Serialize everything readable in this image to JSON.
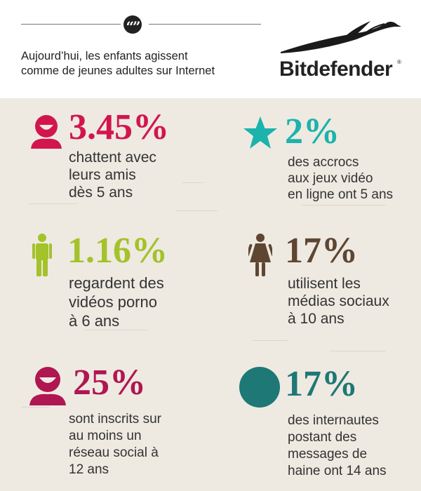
{
  "header": {
    "quote_mark": "“”",
    "headline_line1": "Aujourd’hui, les enfants agissent",
    "headline_line2": "comme de jeunes adultes sur Internet",
    "logo_text": "Bitdefender",
    "logo_reg": "®"
  },
  "colors": {
    "crimson": "#d2164d",
    "teal": "#1bb3ab",
    "lime": "#a4c22a",
    "brown": "#5e4632",
    "wine": "#b01651",
    "dark_teal": "#1e7876"
  },
  "stats": [
    {
      "icon": "chat-user-icon",
      "value": "3.45%",
      "lines": [
        "chattent avec",
        "leurs amis",
        "dès 5 ans"
      ]
    },
    {
      "icon": "star-icon",
      "value": "2%",
      "lines": [
        "des accrocs",
        "aux jeux vidéo",
        "en ligne ont 5 ans"
      ]
    },
    {
      "icon": "boy-icon",
      "value": "1.16%",
      "lines": [
        "regardent des",
        "vidéos porno",
        "à 6 ans"
      ]
    },
    {
      "icon": "girl-icon",
      "value": "17%",
      "lines": [
        "utilisent les",
        "médias sociaux",
        "à 10 ans"
      ]
    },
    {
      "icon": "user-icon",
      "value": "25%",
      "lines": [
        "sont inscrits sur",
        "au moins un",
        "réseau social à",
        "12 ans"
      ]
    },
    {
      "icon": "circle-icon",
      "value": "17%",
      "lines": [
        "des internautes",
        "postant des",
        "messages de",
        "haine ont 14 ans"
      ]
    }
  ]
}
